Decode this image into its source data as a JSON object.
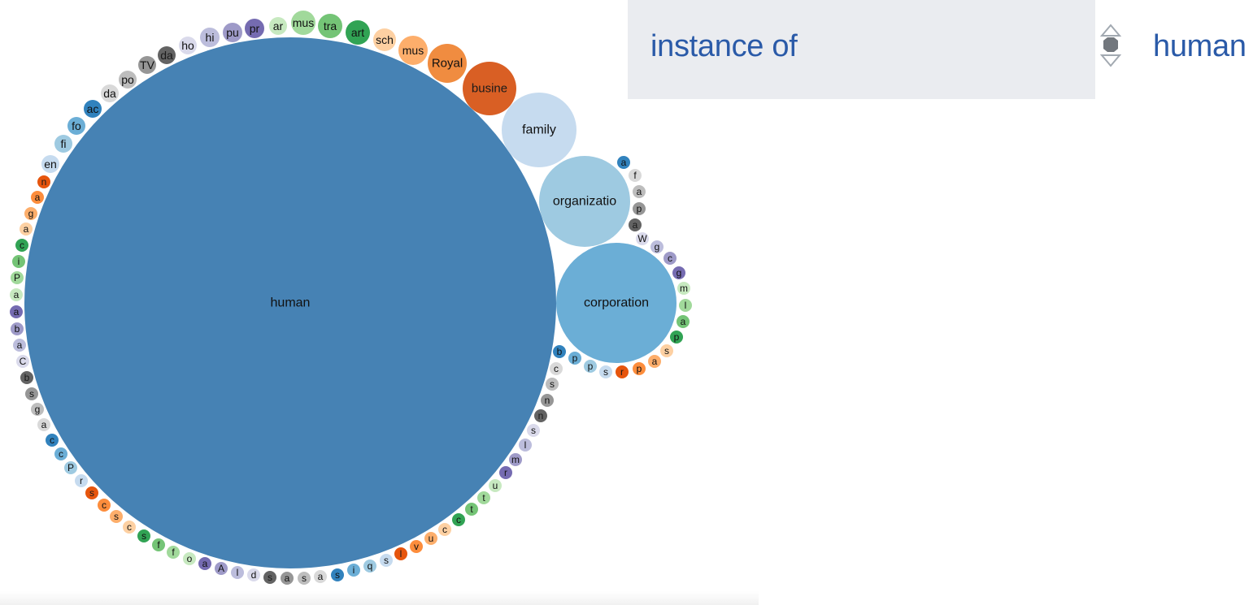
{
  "header": {
    "property_label": "instance of",
    "value_label": "human"
  },
  "icons": {
    "sorter": "sort-up-down-icon"
  },
  "chart_data": {
    "type": "bubble",
    "title": "",
    "bubbles": [
      {
        "label": "human",
        "size": 100,
        "color": "#4682b4"
      },
      {
        "label": "busine",
        "size": 1.0,
        "color": "#d95f24"
      },
      {
        "label": "family",
        "size": 2.0,
        "color": "#c6dbef"
      },
      {
        "label": "organizatio",
        "size": 3.0,
        "color": "#9ecae1"
      },
      {
        "label": "corporation",
        "size": 5.2,
        "color": "#6baed6"
      },
      {
        "label": "Royal",
        "size": 0.55,
        "color": "#f08c40"
      },
      {
        "label": "mus",
        "size": 0.33,
        "color": "#fdae6b"
      },
      {
        "label": "sch",
        "size": 0.2,
        "color": "#fdd0a2"
      },
      {
        "label": "art",
        "size": 0.2,
        "color": "#31a354"
      },
      {
        "label": "tra",
        "size": 0.2,
        "color": "#74c476"
      },
      {
        "label": "mus",
        "size": 0.2,
        "color": "#a1d99b"
      },
      {
        "label": "ar",
        "size": 0.15,
        "color": "#c7e9c0"
      },
      {
        "label": "pr",
        "size": 0.15,
        "color": "#756bb1"
      },
      {
        "label": "pu",
        "size": 0.15,
        "color": "#9e9ac8"
      },
      {
        "label": "hi",
        "size": 0.15,
        "color": "#bcbddc"
      },
      {
        "label": "ho",
        "size": 0.12,
        "color": "#dadaeb"
      },
      {
        "label": "da",
        "size": 0.12,
        "color": "#636363"
      },
      {
        "label": "TV",
        "size": 0.12,
        "color": "#969696"
      },
      {
        "label": "po",
        "size": 0.12,
        "color": "#bdbdbd"
      },
      {
        "label": "da",
        "size": 0.12,
        "color": "#d9d9d9"
      },
      {
        "label": "ac",
        "size": 0.12,
        "color": "#3182bd"
      },
      {
        "label": "fo",
        "size": 0.12,
        "color": "#6baed6"
      },
      {
        "label": "fi",
        "size": 0.12,
        "color": "#9ecae1"
      },
      {
        "label": "en",
        "size": 0.12,
        "color": "#c6dbef"
      },
      {
        "label": "n",
        "size": 0.08,
        "color": "#e6550d"
      },
      {
        "label": "a",
        "size": 0.08,
        "color": "#fd8d3c"
      },
      {
        "label": "g",
        "size": 0.08,
        "color": "#fdae6b"
      },
      {
        "label": "a",
        "size": 0.08,
        "color": "#fdd0a2"
      },
      {
        "label": "c",
        "size": 0.08,
        "color": "#31a354"
      },
      {
        "label": "i",
        "size": 0.08,
        "color": "#74c476"
      },
      {
        "label": "P",
        "size": 0.08,
        "color": "#a1d99b"
      },
      {
        "label": "a",
        "size": 0.08,
        "color": "#c7e9c0"
      },
      {
        "label": "a",
        "size": 0.08,
        "color": "#756bb1"
      },
      {
        "label": "b",
        "size": 0.08,
        "color": "#9e9ac8"
      },
      {
        "label": "a",
        "size": 0.08,
        "color": "#bcbddc"
      },
      {
        "label": "C",
        "size": 0.08,
        "color": "#dadaeb"
      },
      {
        "label": "b",
        "size": 0.08,
        "color": "#636363"
      },
      {
        "label": "s",
        "size": 0.08,
        "color": "#969696"
      },
      {
        "label": "g",
        "size": 0.08,
        "color": "#bdbdbd"
      },
      {
        "label": "a",
        "size": 0.08,
        "color": "#d9d9d9"
      },
      {
        "label": "c",
        "size": 0.08,
        "color": "#3182bd"
      },
      {
        "label": "c",
        "size": 0.08,
        "color": "#6baed6"
      },
      {
        "label": "P",
        "size": 0.08,
        "color": "#9ecae1"
      },
      {
        "label": "r",
        "size": 0.08,
        "color": "#c6dbef"
      },
      {
        "label": "s",
        "size": 0.08,
        "color": "#e6550d"
      },
      {
        "label": "c",
        "size": 0.08,
        "color": "#fd8d3c"
      },
      {
        "label": "s",
        "size": 0.08,
        "color": "#fdae6b"
      },
      {
        "label": "c",
        "size": 0.08,
        "color": "#fdd0a2"
      },
      {
        "label": "s",
        "size": 0.08,
        "color": "#31a354"
      },
      {
        "label": "f",
        "size": 0.08,
        "color": "#74c476"
      },
      {
        "label": "f",
        "size": 0.08,
        "color": "#a1d99b"
      },
      {
        "label": "o",
        "size": 0.08,
        "color": "#c7e9c0"
      },
      {
        "label": "a",
        "size": 0.08,
        "color": "#756bb1"
      },
      {
        "label": "A",
        "size": 0.08,
        "color": "#9e9ac8"
      },
      {
        "label": "l",
        "size": 0.08,
        "color": "#bcbddc"
      },
      {
        "label": "d",
        "size": 0.08,
        "color": "#dadaeb"
      },
      {
        "label": "s",
        "size": 0.08,
        "color": "#636363"
      },
      {
        "label": "a",
        "size": 0.08,
        "color": "#969696"
      },
      {
        "label": "s",
        "size": 0.08,
        "color": "#bdbdbd"
      },
      {
        "label": "a",
        "size": 0.08,
        "color": "#d9d9d9"
      },
      {
        "label": "s",
        "size": 0.08,
        "color": "#3182bd"
      },
      {
        "label": "i",
        "size": 0.08,
        "color": "#6baed6"
      },
      {
        "label": "q",
        "size": 0.08,
        "color": "#9ecae1"
      },
      {
        "label": "s",
        "size": 0.08,
        "color": "#c6dbef"
      },
      {
        "label": "l",
        "size": 0.08,
        "color": "#e6550d"
      },
      {
        "label": "v",
        "size": 0.08,
        "color": "#fd8d3c"
      },
      {
        "label": "u",
        "size": 0.08,
        "color": "#fdae6b"
      },
      {
        "label": "c",
        "size": 0.08,
        "color": "#fdd0a2"
      },
      {
        "label": "c",
        "size": 0.08,
        "color": "#31a354"
      },
      {
        "label": "t",
        "size": 0.08,
        "color": "#74c476"
      },
      {
        "label": "t",
        "size": 0.08,
        "color": "#a1d99b"
      },
      {
        "label": "u",
        "size": 0.08,
        "color": "#c7e9c0"
      },
      {
        "label": "r",
        "size": 0.08,
        "color": "#756bb1"
      },
      {
        "label": "m",
        "size": 0.08,
        "color": "#9e9ac8"
      },
      {
        "label": "l",
        "size": 0.08,
        "color": "#bcbddc"
      },
      {
        "label": "s",
        "size": 0.08,
        "color": "#dadaeb"
      },
      {
        "label": "n",
        "size": 0.08,
        "color": "#636363"
      },
      {
        "label": "n",
        "size": 0.08,
        "color": "#969696"
      },
      {
        "label": "s",
        "size": 0.08,
        "color": "#bdbdbd"
      },
      {
        "label": "c",
        "size": 0.08,
        "color": "#d9d9d9"
      },
      {
        "label": "b",
        "size": 0.08,
        "color": "#3182bd"
      },
      {
        "label": "p",
        "size": 0.08,
        "color": "#6baed6"
      },
      {
        "label": "p",
        "size": 0.08,
        "color": "#9ecae1"
      },
      {
        "label": "s",
        "size": 0.08,
        "color": "#c6dbef"
      },
      {
        "label": "r",
        "size": 0.08,
        "color": "#e6550d"
      },
      {
        "label": "p",
        "size": 0.08,
        "color": "#fd8d3c"
      },
      {
        "label": "a",
        "size": 0.08,
        "color": "#fdae6b"
      },
      {
        "label": "s",
        "size": 0.08,
        "color": "#fdd0a2"
      },
      {
        "label": "p",
        "size": 0.08,
        "color": "#31a354"
      },
      {
        "label": "a",
        "size": 0.08,
        "color": "#74c476"
      },
      {
        "label": "l",
        "size": 0.08,
        "color": "#a1d99b"
      },
      {
        "label": "m",
        "size": 0.08,
        "color": "#c7e9c0"
      },
      {
        "label": "g",
        "size": 0.08,
        "color": "#756bb1"
      },
      {
        "label": "c",
        "size": 0.08,
        "color": "#9e9ac8"
      },
      {
        "label": "g",
        "size": 0.08,
        "color": "#bcbddc"
      },
      {
        "label": "W",
        "size": 0.08,
        "color": "#dadaeb"
      },
      {
        "label": "a",
        "size": 0.08,
        "color": "#636363"
      },
      {
        "label": "p",
        "size": 0.08,
        "color": "#969696"
      },
      {
        "label": "a",
        "size": 0.08,
        "color": "#bdbdbd"
      },
      {
        "label": "f",
        "size": 0.08,
        "color": "#d9d9d9"
      },
      {
        "label": "a",
        "size": 0.08,
        "color": "#3182bd"
      }
    ]
  }
}
